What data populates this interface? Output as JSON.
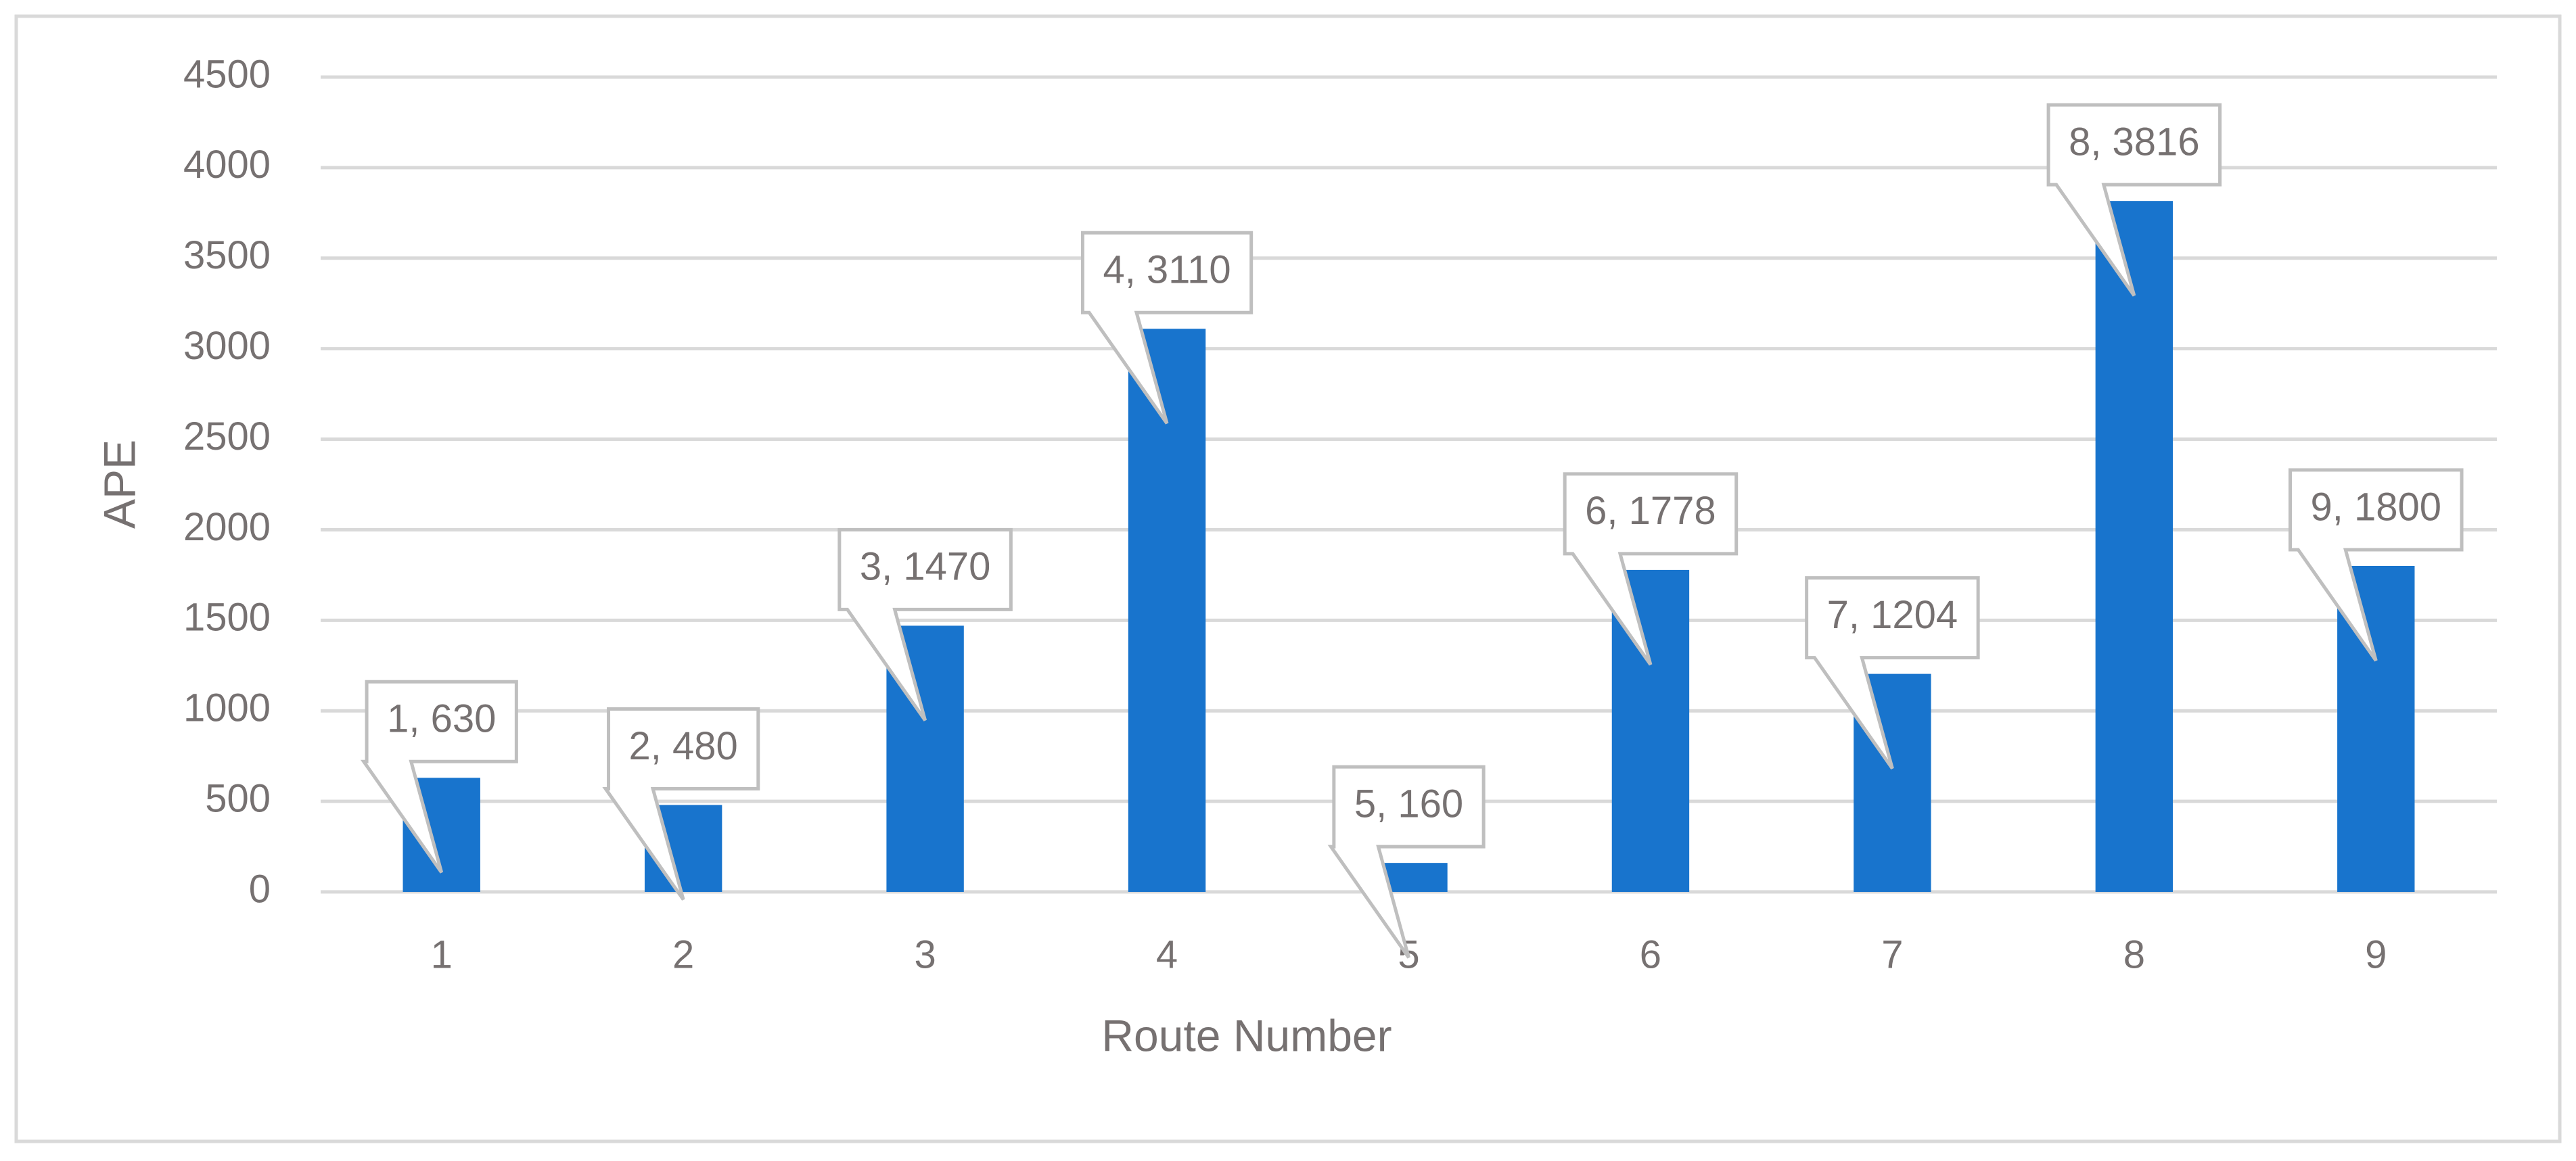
{
  "chart_data": {
    "type": "bar",
    "x_label": "Route Number",
    "y_label": "APE",
    "categories": [
      "1",
      "2",
      "3",
      "4",
      "5",
      "6",
      "7",
      "8",
      "9"
    ],
    "values": [
      630,
      480,
      1470,
      3110,
      160,
      1778,
      1204,
      3816,
      1800
    ],
    "value_labels": [
      "1, 630",
      "2, 480",
      "3, 1470",
      "4, 3110",
      "5, 160",
      "6, 1778",
      "7, 1204",
      "8, 3816",
      "9, 1800"
    ],
    "color": "#1874cd",
    "ylim": [
      0,
      4500
    ],
    "yticks": [
      0,
      500,
      1000,
      1500,
      2000,
      2500,
      3000,
      3500,
      4000,
      4500
    ],
    "grid": true
  }
}
